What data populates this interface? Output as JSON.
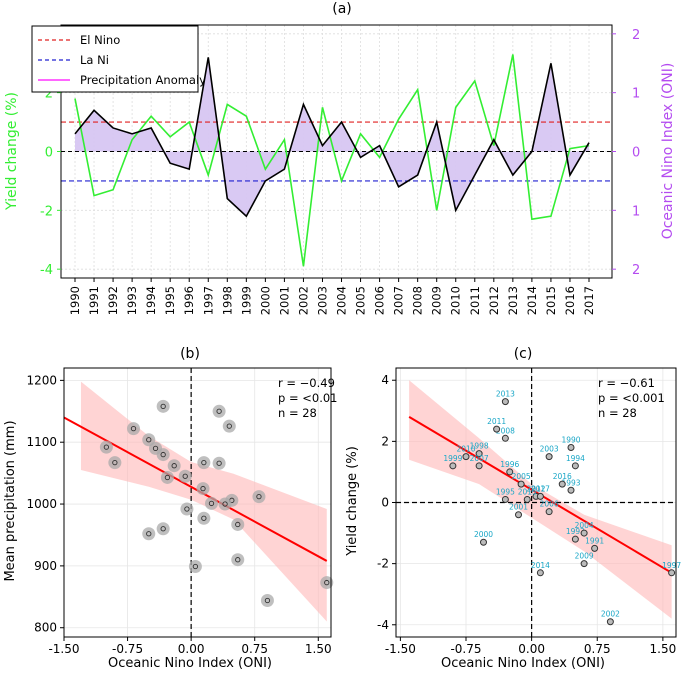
{
  "colors": {
    "yield": "#33ee33",
    "oni_line": "#000000",
    "oni_fill": "#d7c6f2",
    "el_nino": "#e02020",
    "la_nina": "#2020d0",
    "precip_legend": "#ff33ff",
    "right_axis": "#b44cf0",
    "regression": "#ff0000",
    "band": "#ffb8b8",
    "label_text": "#1aa7c7",
    "point_fill": "#aaaaaa"
  },
  "chart_data": [
    {
      "panel": "(a)",
      "type": "line",
      "title": "(a)",
      "x": [
        1990,
        1991,
        1992,
        1993,
        1994,
        1995,
        1996,
        1997,
        1998,
        1999,
        2000,
        2001,
        2002,
        2003,
        2004,
        2005,
        2006,
        2007,
        2008,
        2009,
        2010,
        2011,
        2012,
        2013,
        2014,
        2015,
        2016,
        2017
      ],
      "x_tick_labels": [
        "1990",
        "1991",
        "1992",
        "1993",
        "1994",
        "1995",
        "1996",
        "1997",
        "1998",
        "1999",
        "2000",
        "2001",
        "2002",
        "2003",
        "2004",
        "2005",
        "2006",
        "2007",
        "2008",
        "2009",
        "2010",
        "2011",
        "2012",
        "2013",
        "2014",
        "2015",
        "2016",
        "2017"
      ],
      "series": [
        {
          "name": "Yield change",
          "axis": "left",
          "values": [
            1.8,
            -1.5,
            -1.3,
            0.4,
            1.2,
            0.5,
            1.0,
            -0.8,
            1.6,
            1.2,
            -0.6,
            0.4,
            -3.9,
            1.5,
            -1.0,
            0.6,
            -0.2,
            1.1,
            2.1,
            -2.0,
            1.5,
            2.4,
            0.2,
            3.3,
            -2.3,
            -2.2,
            0.1,
            0.2
          ]
        },
        {
          "name": "Oceanic Nino Index",
          "axis": "right",
          "values": [
            0.3,
            0.7,
            0.4,
            0.3,
            0.4,
            -0.2,
            -0.3,
            1.6,
            -0.8,
            -1.1,
            -0.5,
            -0.3,
            0.8,
            0.1,
            0.5,
            -0.1,
            0.1,
            -0.6,
            -0.4,
            0.5,
            -1.0,
            -0.4,
            0.2,
            -0.4,
            0.0,
            1.5,
            -0.4,
            0.15
          ]
        }
      ],
      "reference_lines": [
        {
          "name": "El Nino",
          "value": 1.0,
          "style": "dashed"
        },
        {
          "name": "La Ni",
          "value": -1.0,
          "style": "dashed"
        },
        {
          "name": "zero",
          "value": 0.0,
          "style": "dashed"
        }
      ],
      "legend": [
        "El Nino",
        "La Ni",
        "Precipitation Anomaly"
      ],
      "legend_position": "top-left",
      "ylabel": "Yield change (%)",
      "ylabel_right": "Oceanic Nino Index (ONI)",
      "ylim": [
        -4.3,
        4.3
      ],
      "ylim_right": [
        -2.15,
        2.15
      ],
      "y_ticks": [
        "-4",
        "-2",
        "0",
        "2",
        "4"
      ],
      "y_ticks_right": [
        "2",
        "1",
        "0",
        "1",
        "2"
      ]
    },
    {
      "panel": "(b)",
      "type": "scatter",
      "title": "(b)",
      "xlabel": "Oceanic Nino Index (ONI)",
      "ylabel": "Mean precipitation (mm)",
      "xlim": [
        -1.5,
        1.65
      ],
      "ylim": [
        785,
        1220
      ],
      "x_ticks": [
        "-1.50",
        "-0.75",
        "0.00",
        "0.75",
        "1.50"
      ],
      "y_ticks": [
        "800",
        "900",
        "1000",
        "1100",
        "1200"
      ],
      "points": [
        {
          "x": -1.0,
          "y": 1092
        },
        {
          "x": -0.9,
          "y": 1067
        },
        {
          "x": -0.68,
          "y": 1122
        },
        {
          "x": -0.5,
          "y": 1104
        },
        {
          "x": -0.42,
          "y": 1090
        },
        {
          "x": -0.33,
          "y": 1080
        },
        {
          "x": -0.2,
          "y": 1062
        },
        {
          "x": -0.28,
          "y": 1043
        },
        {
          "x": -0.07,
          "y": 1045
        },
        {
          "x": 0.14,
          "y": 1025
        },
        {
          "x": -0.05,
          "y": 992
        },
        {
          "x": -0.5,
          "y": 952
        },
        {
          "x": -0.33,
          "y": 960
        },
        {
          "x": -0.33,
          "y": 1158
        },
        {
          "x": 0.33,
          "y": 1150
        },
        {
          "x": 0.45,
          "y": 1126
        },
        {
          "x": 0.15,
          "y": 1067
        },
        {
          "x": 0.33,
          "y": 1066
        },
        {
          "x": 0.24,
          "y": 1001
        },
        {
          "x": 0.48,
          "y": 1006
        },
        {
          "x": 0.15,
          "y": 977
        },
        {
          "x": 0.55,
          "y": 967
        },
        {
          "x": 0.05,
          "y": 899
        },
        {
          "x": 0.55,
          "y": 910
        },
        {
          "x": 0.8,
          "y": 1012
        },
        {
          "x": 0.9,
          "y": 844
        },
        {
          "x": 1.6,
          "y": 873
        },
        {
          "x": 0.4,
          "y": 1000
        }
      ],
      "regression": {
        "x": [
          -1.5,
          1.6
        ],
        "y": [
          1140,
          908
        ]
      },
      "band": {
        "x": [
          -1.3,
          -0.5,
          0.0,
          0.5,
          1.6
        ],
        "lower": [
          1055,
          1028,
          1007,
          975,
          810
        ],
        "upper": [
          1198,
          1110,
          1068,
          1049,
          992
        ]
      },
      "reference_x": 0.0,
      "annotations": {
        "r": "r = −0.49",
        "p": "p = <0.01",
        "n": "n = 28"
      }
    },
    {
      "panel": "(c)",
      "type": "scatter",
      "title": "(c)",
      "xlabel": "Oceanic Nino Index (ONI)",
      "ylabel": "Yield change (%)",
      "xlim": [
        -1.55,
        1.65
      ],
      "ylim": [
        -4.4,
        4.4
      ],
      "x_ticks": [
        "-1.50",
        "-0.75",
        "0.00",
        "0.75",
        "1.50"
      ],
      "y_ticks": [
        "-4",
        "-2",
        "0",
        "2",
        "4"
      ],
      "points": [
        {
          "label": "1990",
          "x": 0.45,
          "y": 1.8
        },
        {
          "label": "1991",
          "x": 0.72,
          "y": -1.5
        },
        {
          "label": "1992",
          "x": 0.5,
          "y": -1.2
        },
        {
          "label": "1993",
          "x": 0.45,
          "y": 0.4
        },
        {
          "label": "1994",
          "x": 0.5,
          "y": 1.2
        },
        {
          "label": "1995",
          "x": -0.3,
          "y": 0.1
        },
        {
          "label": "1996",
          "x": -0.25,
          "y": 1.0
        },
        {
          "label": "1997",
          "x": 1.6,
          "y": -2.3
        },
        {
          "label": "1998",
          "x": -0.6,
          "y": 1.6
        },
        {
          "label": "1999",
          "x": -0.9,
          "y": 1.2
        },
        {
          "label": "2000",
          "x": -0.55,
          "y": -1.3
        },
        {
          "label": "2001",
          "x": -0.15,
          "y": -0.4
        },
        {
          "label": "2002",
          "x": 0.9,
          "y": -3.9
        },
        {
          "label": "2003",
          "x": 0.2,
          "y": 1.5
        },
        {
          "label": "2004",
          "x": 0.6,
          "y": -1.0
        },
        {
          "label": "2005",
          "x": -0.12,
          "y": 0.6
        },
        {
          "label": "2006",
          "x": 0.2,
          "y": -0.3
        },
        {
          "label": "2007",
          "x": -0.6,
          "y": 1.2
        },
        {
          "label": "2008",
          "x": -0.3,
          "y": 2.1
        },
        {
          "label": "2009",
          "x": 0.6,
          "y": -2.0
        },
        {
          "label": "2010",
          "x": -0.75,
          "y": 1.5
        },
        {
          "label": "2011",
          "x": -0.4,
          "y": 2.4
        },
        {
          "label": "2012",
          "x": 0.05,
          "y": 0.2
        },
        {
          "label": "2013",
          "x": -0.3,
          "y": 3.3
        },
        {
          "label": "2014",
          "x": 0.1,
          "y": -2.3
        },
        {
          "label": "2015",
          "x": -0.05,
          "y": 0.1
        },
        {
          "label": "2016",
          "x": 0.35,
          "y": 0.6
        },
        {
          "label": "2017",
          "x": 0.1,
          "y": 0.2
        }
      ],
      "regression": {
        "x": [
          -1.4,
          1.6
        ],
        "y": [
          2.8,
          -2.3
        ]
      },
      "band": {
        "x": [
          -1.4,
          -0.6,
          0.0,
          0.6,
          1.6
        ],
        "lower": [
          1.4,
          0.6,
          -0.5,
          -1.6,
          -3.8
        ],
        "upper": [
          4.0,
          2.1,
          0.6,
          -0.4,
          -1.4
        ]
      },
      "reference_x": 0.0,
      "reference_y": 0.0,
      "annotations": {
        "r": "r = −0.61",
        "p": "p = <0.001",
        "n": "n = 28"
      }
    }
  ]
}
